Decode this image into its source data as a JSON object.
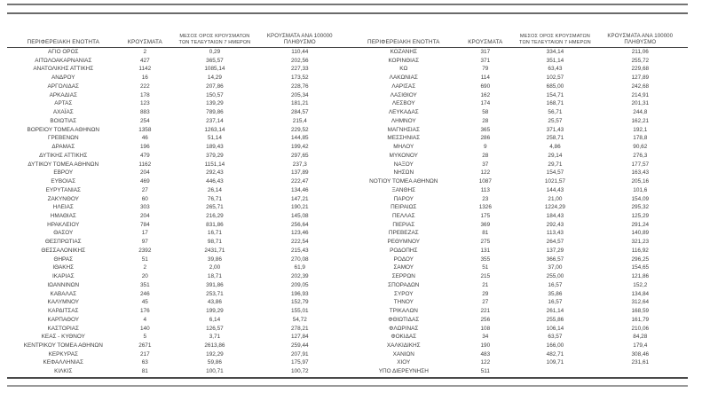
{
  "table": {
    "headers": {
      "region": "ΠΕΡΙΦΕΡΕΙΑΚΗ ΕΝΟΤΗΤΑ",
      "cases": "ΚΡΟΥΣΜΑΤΑ",
      "avg7_line1": "ΜΕΣΟΣ ΟΡΟΣ ΚΡΟΥΣΜΑΤΩΝ",
      "avg7_line2": "ΤΩΝ ΤΕΛΕΥΤΑΙΩΝ 7 ΗΜΕΡΩΝ",
      "per100k_line1": "ΚΡΟΥΣΜΑΤΑ ΑΝΑ 100000",
      "per100k_line2": "ΠΛΗΘΥΣΜΟ"
    },
    "left_rows": [
      {
        "region": "ΑΓΙΟ ΟΡΟΣ",
        "cases": "2",
        "avg7": "0,29",
        "per100k": "110,44"
      },
      {
        "region": "ΑΙΤΩΛΟΑΚΑΡΝΑΝΙΑΣ",
        "cases": "427",
        "avg7": "365,57",
        "per100k": "202,56"
      },
      {
        "region": "ΑΝΑΤΟΛΙΚΗΣ ΑΤΤΙΚΗΣ",
        "cases": "1142",
        "avg7": "1085,14",
        "per100k": "227,33"
      },
      {
        "region": "ΑΝΔΡΟΥ",
        "cases": "16",
        "avg7": "14,29",
        "per100k": "173,52"
      },
      {
        "region": "ΑΡΓΟΛΙΔΑΣ",
        "cases": "222",
        "avg7": "207,86",
        "per100k": "228,76"
      },
      {
        "region": "ΑΡΚΑΔΙΑΣ",
        "cases": "178",
        "avg7": "150,57",
        "per100k": "205,34"
      },
      {
        "region": "ΑΡΤΑΣ",
        "cases": "123",
        "avg7": "139,29",
        "per100k": "181,21"
      },
      {
        "region": "ΑΧΑΪΑΣ",
        "cases": "883",
        "avg7": "789,86",
        "per100k": "284,57"
      },
      {
        "region": "ΒΟΙΩΤΙΑΣ",
        "cases": "254",
        "avg7": "237,14",
        "per100k": "215,4"
      },
      {
        "region": "ΒΟΡΕΙΟΥ ΤΟΜΕΑ ΑΘΗΝΩΝ",
        "cases": "1358",
        "avg7": "1263,14",
        "per100k": "229,52"
      },
      {
        "region": "ΓΡΕΒΕΝΩΝ",
        "cases": "46",
        "avg7": "51,14",
        "per100k": "144,85"
      },
      {
        "region": "ΔΡΑΜΑΣ",
        "cases": "196",
        "avg7": "189,43",
        "per100k": "199,42"
      },
      {
        "region": "ΔΥΤΙΚΗΣ ΑΤΤΙΚΗΣ",
        "cases": "479",
        "avg7": "379,29",
        "per100k": "297,65"
      },
      {
        "region": "ΔΥΤΙΚΟΥ ΤΟΜΕΑ ΑΘΗΝΩΝ",
        "cases": "1162",
        "avg7": "1151,14",
        "per100k": "237,3"
      },
      {
        "region": "ΕΒΡΟΥ",
        "cases": "204",
        "avg7": "292,43",
        "per100k": "137,89"
      },
      {
        "region": "ΕΥΒΟΙΑΣ",
        "cases": "469",
        "avg7": "446,43",
        "per100k": "222,47"
      },
      {
        "region": "ΕΥΡΥΤΑΝΙΑΣ",
        "cases": "27",
        "avg7": "26,14",
        "per100k": "134,46"
      },
      {
        "region": "ΖΑΚΥΝΘΟΥ",
        "cases": "60",
        "avg7": "76,71",
        "per100k": "147,21"
      },
      {
        "region": "ΗΛΕΙΑΣ",
        "cases": "303",
        "avg7": "265,71",
        "per100k": "190,21"
      },
      {
        "region": "ΗΜΑΘΙΑΣ",
        "cases": "204",
        "avg7": "216,29",
        "per100k": "145,08"
      },
      {
        "region": "ΗΡΑΚΛΕΙΟΥ",
        "cases": "784",
        "avg7": "831,86",
        "per100k": "256,64"
      },
      {
        "region": "ΘΑΣΟΥ",
        "cases": "17",
        "avg7": "16,71",
        "per100k": "123,46"
      },
      {
        "region": "ΘΕΣΠΡΩΤΙΑΣ",
        "cases": "97",
        "avg7": "98,71",
        "per100k": "222,54"
      },
      {
        "region": "ΘΕΣΣΑΛΟΝΙΚΗΣ",
        "cases": "2392",
        "avg7": "2431,71",
        "per100k": "215,43"
      },
      {
        "region": "ΘΗΡΑΣ",
        "cases": "51",
        "avg7": "39,86",
        "per100k": "270,08"
      },
      {
        "region": "ΙΘΑΚΗΣ",
        "cases": "2",
        "avg7": "2,00",
        "per100k": "61,9"
      },
      {
        "region": "ΙΚΑΡΙΑΣ",
        "cases": "20",
        "avg7": "18,71",
        "per100k": "202,39"
      },
      {
        "region": "ΙΩΑΝΝΙΝΩΝ",
        "cases": "351",
        "avg7": "391,86",
        "per100k": "209,05"
      },
      {
        "region": "ΚΑΒΑΛΑΣ",
        "cases": "246",
        "avg7": "253,71",
        "per100k": "196,93"
      },
      {
        "region": "ΚΑΛΥΜΝΟΥ",
        "cases": "45",
        "avg7": "43,86",
        "per100k": "152,79"
      },
      {
        "region": "ΚΑΡΔΙΤΣΑΣ",
        "cases": "176",
        "avg7": "199,29",
        "per100k": "155,01"
      },
      {
        "region": "ΚΑΡΠΑΘΟΥ",
        "cases": "4",
        "avg7": "6,14",
        "per100k": "54,72"
      },
      {
        "region": "ΚΑΣΤΟΡΙΑΣ",
        "cases": "140",
        "avg7": "126,57",
        "per100k": "278,21"
      },
      {
        "region": "ΚΕΑΣ - ΚΥΘΝΟΥ",
        "cases": "5",
        "avg7": "3,71",
        "per100k": "127,84"
      },
      {
        "region": "ΚΕΝΤΡΙΚΟΥ ΤΟΜΕΑ ΑΘΗΝΩΝ",
        "cases": "2671",
        "avg7": "2613,86",
        "per100k": "259,44"
      },
      {
        "region": "ΚΕΡΚΥΡΑΣ",
        "cases": "217",
        "avg7": "192,29",
        "per100k": "207,91"
      },
      {
        "region": "ΚΕΦΑΛΛΗΝΙΑΣ",
        "cases": "63",
        "avg7": "59,86",
        "per100k": "175,97"
      },
      {
        "region": "ΚΙΛΚΙΣ",
        "cases": "81",
        "avg7": "100,71",
        "per100k": "100,72"
      }
    ],
    "right_rows": [
      {
        "region": "ΚΟΖΑΝΗΣ",
        "cases": "317",
        "avg7": "334,14",
        "per100k": "211,06"
      },
      {
        "region": "ΚΟΡΙΝΘΙΑΣ",
        "cases": "371",
        "avg7": "351,14",
        "per100k": "255,72"
      },
      {
        "region": "ΚΩ",
        "cases": "79",
        "avg7": "63,43",
        "per100k": "229,68"
      },
      {
        "region": "ΛΑΚΩΝΙΑΣ",
        "cases": "114",
        "avg7": "102,57",
        "per100k": "127,89"
      },
      {
        "region": "ΛΑΡΙΣΑΣ",
        "cases": "690",
        "avg7": "685,00",
        "per100k": "242,68"
      },
      {
        "region": "ΛΑΣΙΘΙΟΥ",
        "cases": "162",
        "avg7": "154,71",
        "per100k": "214,91"
      },
      {
        "region": "ΛΕΣΒΟΥ",
        "cases": "174",
        "avg7": "168,71",
        "per100k": "201,31"
      },
      {
        "region": "ΛΕΥΚΑΔΑΣ",
        "cases": "58",
        "avg7": "56,71",
        "per100k": "244,8"
      },
      {
        "region": "ΛΗΜΝΟΥ",
        "cases": "28",
        "avg7": "25,57",
        "per100k": "162,21"
      },
      {
        "region": "ΜΑΓΝΗΣΙΑΣ",
        "cases": "365",
        "avg7": "371,43",
        "per100k": "192,1"
      },
      {
        "region": "ΜΕΣΣΗΝΙΑΣ",
        "cases": "286",
        "avg7": "258,71",
        "per100k": "178,8"
      },
      {
        "region": "ΜΗΛΟΥ",
        "cases": "9",
        "avg7": "4,86",
        "per100k": "90,62"
      },
      {
        "region": "ΜΥΚΟΝΟΥ",
        "cases": "28",
        "avg7": "29,14",
        "per100k": "276,3"
      },
      {
        "region": "ΝΑΞΟΥ",
        "cases": "37",
        "avg7": "29,71",
        "per100k": "177,57"
      },
      {
        "region": "ΝΗΣΩΝ",
        "cases": "122",
        "avg7": "154,57",
        "per100k": "163,43"
      },
      {
        "region": "ΝΟΤΙΟΥ ΤΟΜΕΑ ΑΘΗΝΩΝ",
        "cases": "1087",
        "avg7": "1021,57",
        "per100k": "205,16"
      },
      {
        "region": "ΞΑΝΘΗΣ",
        "cases": "113",
        "avg7": "144,43",
        "per100k": "101,6"
      },
      {
        "region": "ΠΑΡΟΥ",
        "cases": "23",
        "avg7": "21,00",
        "per100k": "154,09"
      },
      {
        "region": "ΠΕΙΡΑΙΩΣ",
        "cases": "1326",
        "avg7": "1224,29",
        "per100k": "295,32"
      },
      {
        "region": "ΠΕΛΛΑΣ",
        "cases": "175",
        "avg7": "184,43",
        "per100k": "125,29"
      },
      {
        "region": "ΠΙΕΡΙΑΣ",
        "cases": "369",
        "avg7": "292,43",
        "per100k": "291,24"
      },
      {
        "region": "ΠΡΕΒΕΖΑΣ",
        "cases": "81",
        "avg7": "113,43",
        "per100k": "140,89"
      },
      {
        "region": "ΡΕΘΥΜΝΟΥ",
        "cases": "275",
        "avg7": "264,57",
        "per100k": "321,23"
      },
      {
        "region": "ΡΟΔΟΠΗΣ",
        "cases": "131",
        "avg7": "137,29",
        "per100k": "116,92"
      },
      {
        "region": "ΡΟΔΟΥ",
        "cases": "355",
        "avg7": "366,57",
        "per100k": "296,25"
      },
      {
        "region": "ΣΑΜΟΥ",
        "cases": "51",
        "avg7": "37,00",
        "per100k": "154,65"
      },
      {
        "region": "ΣΕΡΡΩΝ",
        "cases": "215",
        "avg7": "255,00",
        "per100k": "121,86"
      },
      {
        "region": "ΣΠΟΡΑΔΩΝ",
        "cases": "21",
        "avg7": "16,57",
        "per100k": "152,2"
      },
      {
        "region": "ΣΥΡΟΥ",
        "cases": "29",
        "avg7": "35,86",
        "per100k": "134,84"
      },
      {
        "region": "ΤΗΝΟΥ",
        "cases": "27",
        "avg7": "16,57",
        "per100k": "312,64"
      },
      {
        "region": "ΤΡΙΚΑΛΩΝ",
        "cases": "221",
        "avg7": "261,14",
        "per100k": "168,59"
      },
      {
        "region": "ΦΘΙΩΤΙΔΑΣ",
        "cases": "256",
        "avg7": "255,86",
        "per100k": "161,79"
      },
      {
        "region": "ΦΛΩΡΙΝΑΣ",
        "cases": "108",
        "avg7": "106,14",
        "per100k": "210,06"
      },
      {
        "region": "ΦΟΚΙΔΑΣ",
        "cases": "34",
        "avg7": "63,57",
        "per100k": "84,28"
      },
      {
        "region": "ΧΑΛΚΙΔΙΚΗΣ",
        "cases": "190",
        "avg7": "166,00",
        "per100k": "179,4"
      },
      {
        "region": "ΧΑΝΙΩΝ",
        "cases": "483",
        "avg7": "482,71",
        "per100k": "308,46"
      },
      {
        "region": "ΧΙΟΥ",
        "cases": "122",
        "avg7": "109,71",
        "per100k": "231,61"
      },
      {
        "region": "ΥΠΟ ΔΙΕΡΕΥΝΗΣΗ",
        "cases": "511",
        "avg7": "",
        "per100k": ""
      }
    ]
  },
  "colors": {
    "text": "#3d3d3d",
    "header_underline": "#404040",
    "top_rule": "#757575",
    "bottom_thick_rule": "#4a4a4a",
    "bottom_double_rule": "#9a9a9a",
    "background": "#ffffff"
  }
}
